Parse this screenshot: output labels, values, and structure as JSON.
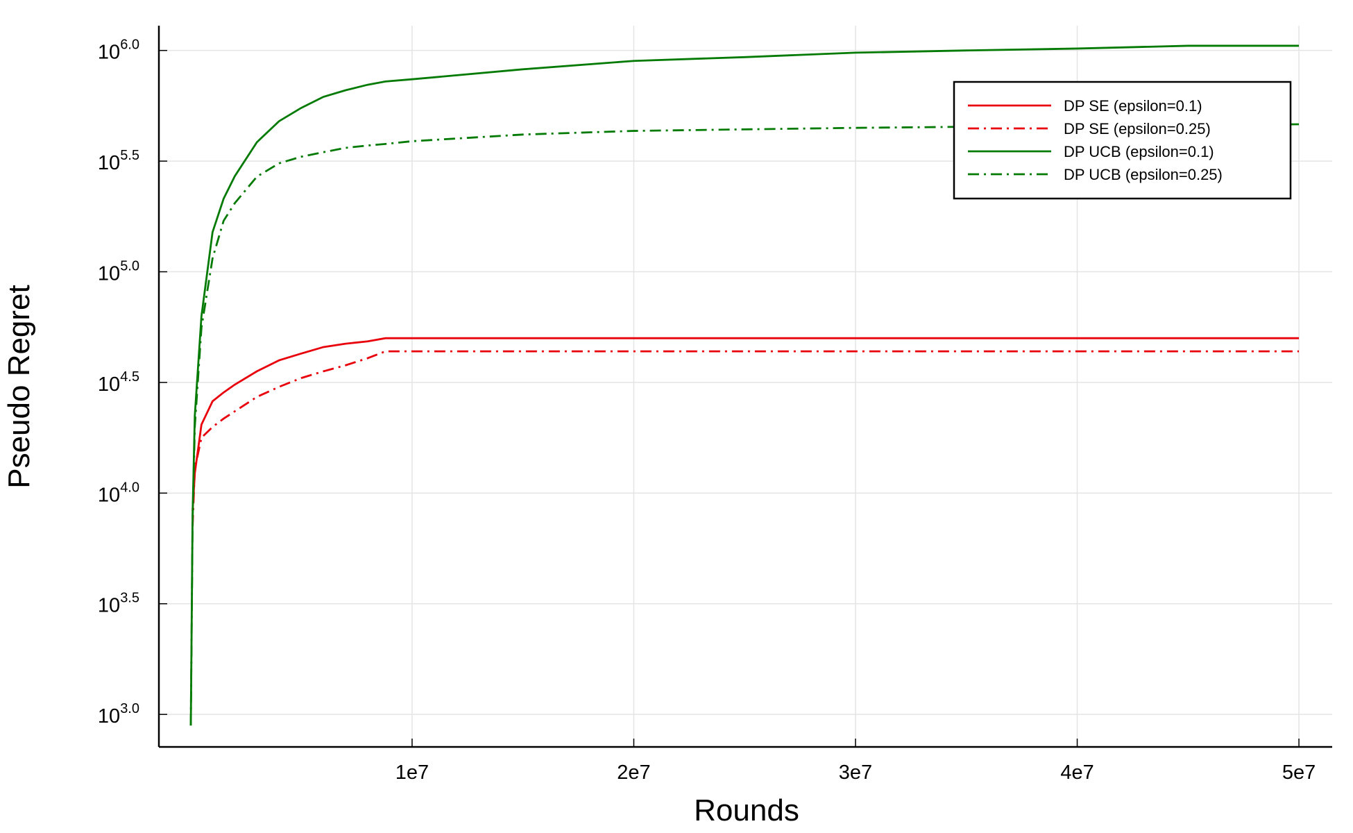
{
  "chart_data": {
    "type": "line",
    "x_label": "Rounds",
    "y_label": "Pseudo Regret",
    "yscale": "log",
    "grid": true,
    "legend": "upper right",
    "xlim": [
      -1420000,
      51500000
    ],
    "xticks": [
      {
        "value": 10000000,
        "label": "1e7"
      },
      {
        "value": 20000000,
        "label": "2e7"
      },
      {
        "value": 30000000,
        "label": "3e7"
      },
      {
        "value": 40000000,
        "label": "4e7"
      },
      {
        "value": 50000000,
        "label": "5e7"
      }
    ],
    "ylim": [
      713,
      1294000
    ],
    "yticks": [
      {
        "value": 1000,
        "label": "10",
        "exponent": "3.0"
      },
      {
        "value": 3162.28,
        "label": "10",
        "exponent": "3.5"
      },
      {
        "value": 10000,
        "label": "10",
        "exponent": "4.0"
      },
      {
        "value": 31622.8,
        "label": "10",
        "exponent": "4.5"
      },
      {
        "value": 100000,
        "label": "10",
        "exponent": "5.0"
      },
      {
        "value": 316228,
        "label": "10",
        "exponent": "5.5"
      },
      {
        "value": 1000000,
        "label": "10",
        "exponent": "6.0"
      }
    ],
    "x": [
      20000,
      100000,
      200000,
      500000,
      1000000,
      1500000,
      2000000,
      3000000,
      4000000,
      5000000,
      6000000,
      7000000,
      8000000,
      8800000,
      10000000,
      15000000,
      20000000,
      25000000,
      30000000,
      35000000,
      40000000,
      45000000,
      50000000
    ],
    "series": [
      {
        "name": "DP SE (epsilon=0.1)",
        "color": "#e8000b",
        "linestyle": "solid",
        "values": [
          null,
          8300,
          12300,
          20400,
          26000,
          28500,
          30900,
          35500,
          39800,
          42700,
          45700,
          47300,
          48500,
          50100,
          50100,
          50100,
          50100,
          50100,
          50100,
          50100,
          50100,
          50100,
          50100
        ]
      },
      {
        "name": "DP SE (epsilon=0.25)",
        "color": "#e8000b",
        "linestyle": "dashdot",
        "values": [
          null,
          7100,
          12900,
          17800,
          19900,
          21700,
          23400,
          27200,
          30200,
          33100,
          35500,
          37800,
          40700,
          43700,
          43700,
          43700,
          43700,
          43700,
          43700,
          43700,
          43700,
          43700,
          43700
        ]
      },
      {
        "name": "DP UCB (epsilon=0.1)",
        "color": "#037a03",
        "linestyle": "solid",
        "values": [
          891,
          7940,
          22400,
          63100,
          151000,
          214000,
          270000,
          385000,
          479000,
          550000,
          617000,
          661000,
          700000,
          724000,
          741000,
          822000,
          897000,
          933000,
          977000,
          1000000,
          1020000,
          1050000,
          1050000
        ]
      },
      {
        "name": "DP UCB (epsilon=0.25)",
        "color": "#037a03",
        "linestyle": "dashdot",
        "values": [
          891,
          7500,
          20000,
          56000,
          115000,
          170000,
          204000,
          269000,
          309000,
          331000,
          347000,
          363000,
          372000,
          378000,
          389000,
          417000,
          433000,
          440000,
          447000,
          452000,
          456000,
          460000,
          464000
        ]
      }
    ]
  }
}
